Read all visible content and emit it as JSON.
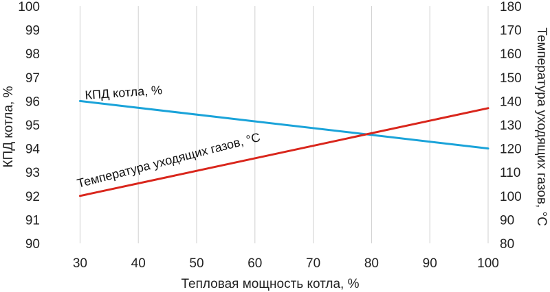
{
  "chart_data": {
    "type": "line",
    "title": "",
    "xlabel": "Тепловая мощность котла, %",
    "ylabel_left": "КПД котла, %",
    "ylabel_right": "Температура уходящих газов, °С",
    "x_ticks": [
      "30",
      "40",
      "50",
      "60",
      "70",
      "80",
      "90",
      "100"
    ],
    "y_left_ticks": [
      "90",
      "91",
      "92",
      "93",
      "94",
      "95",
      "96",
      "97",
      "98",
      "99",
      "100"
    ],
    "y_right_ticks": [
      "80",
      "90",
      "100",
      "110",
      "120",
      "130",
      "140",
      "150",
      "160",
      "170",
      "180"
    ],
    "xlim": [
      25,
      100
    ],
    "ylim_left": [
      90,
      100
    ],
    "ylim_right": [
      80,
      180
    ],
    "grid": "vertical",
    "series": [
      {
        "name": "КПД котла, %",
        "axis": "left",
        "color": "#1aa3d9",
        "x": [
          30,
          100
        ],
        "y": [
          96,
          94
        ]
      },
      {
        "name": "Температура уходящих газов, °С",
        "axis": "right",
        "color": "#d9261c",
        "x": [
          30,
          100
        ],
        "y": [
          100,
          137
        ]
      }
    ]
  }
}
